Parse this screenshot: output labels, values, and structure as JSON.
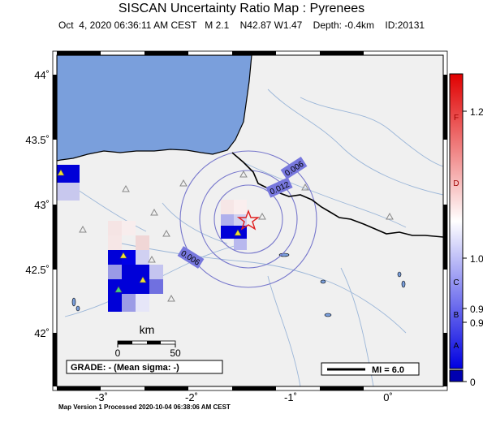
{
  "header": {
    "title": "SISCAN Uncertainty Ratio Map : Pyrenees",
    "subtitle": "Oct  4, 2020 06:36:11 AM CEST   M 2.1    N42.87 W1.47    Depth: -0.4km    ID:20131"
  },
  "footer": {
    "processed": "Map Version 1 Processed 2020-10-04 06:38:06 AM CEST"
  },
  "map": {
    "lat_labels": [
      "44˚",
      "43.5˚",
      "43˚",
      "42.5˚",
      "42˚"
    ],
    "lon_labels": [
      "-3˚",
      "-2˚",
      "-1˚",
      "0˚"
    ],
    "contour_labels": [
      "0.006",
      "0.012",
      "0.006"
    ],
    "scale": {
      "title": "km",
      "min": "0",
      "max": "50"
    },
    "grade_box": "GRADE: - (Mean sigma: -)",
    "mi_box": "MI = 6.0",
    "epicenter": {
      "lat": 42.87,
      "lon": -1.47,
      "icon": "star-icon"
    },
    "colors": {
      "sea": "#7a9fdc",
      "land": "#f0f0f0",
      "high_ratio": "#0000d8",
      "contour": "#7777cc",
      "epicenter": "#e02020"
    }
  },
  "colorbar": {
    "letters": [
      "F",
      "D",
      "C",
      "B",
      "A"
    ],
    "values": [
      "1.2",
      "1.0",
      "0.9",
      "0.9",
      "0"
    ]
  }
}
